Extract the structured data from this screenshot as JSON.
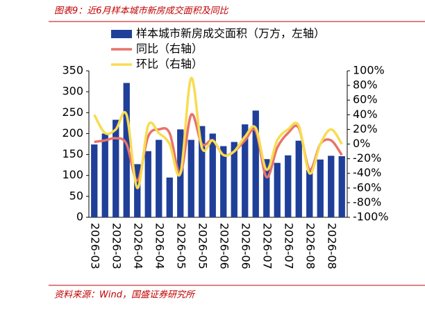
{
  "header": {
    "title": "图表9：近6月样本城市新房成交面积及同比"
  },
  "footer": {
    "source": "资料来源：Wind，国盛证券研究所"
  },
  "chart_data": {
    "type": "bar-line",
    "categories": [
      "2026-03",
      null,
      "2026-03",
      null,
      "2026-04",
      null,
      "2026-04",
      null,
      "2026-05",
      null,
      "2026-05",
      null,
      "2026-06",
      null,
      "2026-06",
      null,
      "2026-07",
      null,
      "2026-07",
      null,
      "2026-08",
      null,
      "2026-08",
      null
    ],
    "series": [
      {
        "name": "样本城市新房成交面积（万方，左轴）",
        "color": "#1f3f99",
        "kind": "bar",
        "values": [
          174,
          200,
          233,
          321,
          127,
          158,
          185,
          95,
          210,
          185,
          218,
          200,
          170,
          180,
          222,
          255,
          139,
          130,
          148,
          183,
          113,
          138,
          147,
          146
        ]
      },
      {
        "name": "同比（右轴）",
        "color": "#e8736b",
        "kind": "line",
        "axis": "y2",
        "values": [
          3,
          5,
          8,
          0,
          -50,
          10,
          20,
          15,
          -40,
          40,
          0,
          5,
          -15,
          -10,
          5,
          18,
          -45,
          -5,
          15,
          22,
          -35,
          0,
          5,
          -15
        ]
      },
      {
        "name": "环比（右轴）",
        "color": "#f8dc50",
        "kind": "line",
        "axis": "y2",
        "values": [
          40,
          15,
          20,
          40,
          -60,
          25,
          15,
          0,
          -40,
          90,
          -5,
          5,
          -15,
          -10,
          10,
          22,
          -35,
          5,
          20,
          25,
          -40,
          0,
          20,
          0
        ]
      }
    ],
    "ylim": [
      0,
      350
    ],
    "yticks": [
      0,
      50,
      100,
      150,
      200,
      250,
      300,
      350
    ],
    "y2lim": [
      -100,
      100
    ],
    "y2ticks": [
      {
        "value": -100,
        "label": "-100%"
      },
      {
        "value": -80,
        "label": "-80%"
      },
      {
        "value": -60,
        "label": "-60%"
      },
      {
        "value": -40,
        "label": "-40%"
      },
      {
        "value": -20,
        "label": "-20%"
      },
      {
        "value": 0,
        "label": "0%"
      },
      {
        "value": 20,
        "label": "20%"
      },
      {
        "value": 40,
        "label": "40%"
      },
      {
        "value": 60,
        "label": "60%"
      },
      {
        "value": 80,
        "label": "80%"
      },
      {
        "value": 100,
        "label": "100%"
      }
    ]
  }
}
